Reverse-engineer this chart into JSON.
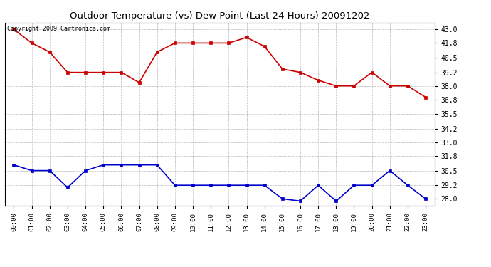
{
  "title": "Outdoor Temperature (vs) Dew Point (Last 24 Hours) 20091202",
  "copyright_text": "Copyright 2009 Cartronics.com",
  "hours": [
    "00:00",
    "01:00",
    "02:00",
    "03:00",
    "04:00",
    "05:00",
    "06:00",
    "07:00",
    "08:00",
    "09:00",
    "10:00",
    "11:00",
    "12:00",
    "13:00",
    "14:00",
    "15:00",
    "16:00",
    "17:00",
    "18:00",
    "19:00",
    "20:00",
    "21:00",
    "22:00",
    "23:00"
  ],
  "temp": [
    43.0,
    41.8,
    41.0,
    39.2,
    39.2,
    39.2,
    39.2,
    38.3,
    41.0,
    41.8,
    41.8,
    41.8,
    41.8,
    42.3,
    41.5,
    39.5,
    39.2,
    38.5,
    38.0,
    38.0,
    39.2,
    38.0,
    38.0,
    37.0
  ],
  "dew": [
    31.0,
    30.5,
    30.5,
    29.0,
    30.5,
    31.0,
    31.0,
    31.0,
    31.0,
    29.2,
    29.2,
    29.2,
    29.2,
    29.2,
    29.2,
    28.0,
    27.8,
    29.2,
    27.8,
    29.2,
    29.2,
    30.5,
    29.2,
    28.0
  ],
  "temp_color": "#cc0000",
  "dew_color": "#0000cc",
  "bg_color": "#ffffff",
  "plot_bg_color": "#ffffff",
  "grid_color": "#bbbbbb",
  "title_color": "#000000",
  "marker": "s",
  "marker_size": 3,
  "line_width": 1.2,
  "yticks": [
    28.0,
    29.2,
    30.5,
    31.8,
    33.0,
    34.2,
    35.5,
    36.8,
    38.0,
    39.2,
    40.5,
    41.8,
    43.0
  ],
  "ylim_min": 27.4,
  "ylim_max": 43.6,
  "xlim_min": -0.5,
  "xlim_max": 23.5
}
